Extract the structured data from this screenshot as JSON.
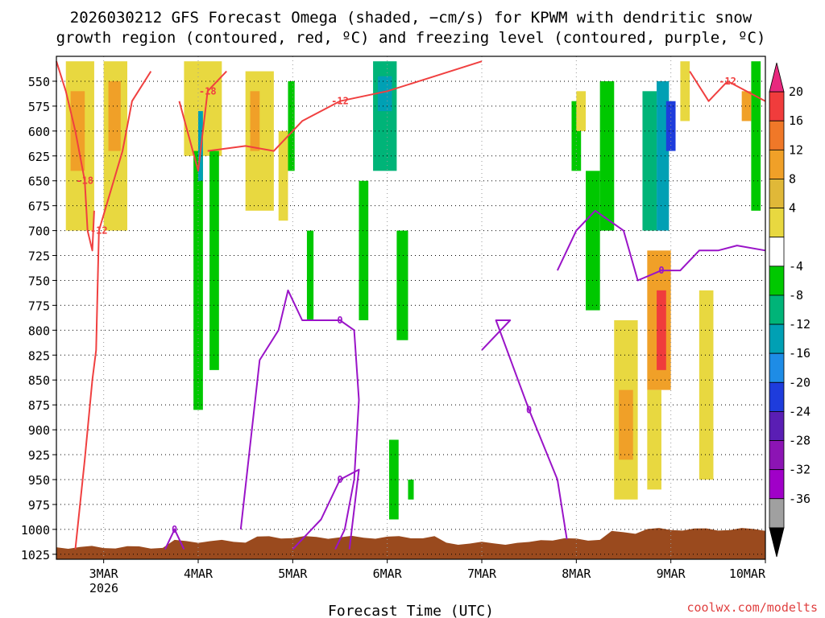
{
  "chart_data": {
    "type": "heatmap",
    "title_line1": "2026030212 GFS Forecast Omega (shaded, −cm/s) for KPWM with dendritic snow",
    "title_line2": "growth region (contoured, red, ºC) and freezing level (contoured, purple, ºC)",
    "xlabel": "Forecast Time (UTC)",
    "credit": "coolwx.com/modelts",
    "year_label": "2026",
    "x_ticks": [
      {
        "label": "3MAR",
        "t": 0.5
      },
      {
        "label": "4MAR",
        "t": 1.5
      },
      {
        "label": "5MAR",
        "t": 2.5
      },
      {
        "label": "6MAR",
        "t": 3.5
      },
      {
        "label": "7MAR",
        "t": 4.5
      },
      {
        "label": "8MAR",
        "t": 5.5
      },
      {
        "label": "9MAR",
        "t": 6.5
      },
      {
        "label": "10MAR",
        "t": 7.5
      }
    ],
    "x_range": [
      0,
      7.5
    ],
    "y_levels": [
      550,
      575,
      600,
      625,
      650,
      675,
      700,
      725,
      750,
      775,
      800,
      825,
      850,
      875,
      900,
      925,
      950,
      975,
      1000,
      1025
    ],
    "y_range": [
      525,
      1030
    ],
    "colorbar": {
      "labels": [
        "20",
        "16",
        "12",
        "8",
        "4",
        "-4",
        "-8",
        "-12",
        "-16",
        "-20",
        "-24",
        "-28",
        "-32",
        "-36"
      ],
      "colors": [
        "#e8287e",
        "#f03c3c",
        "#f07828",
        "#f0a028",
        "#e0b838",
        "#e8d840",
        "#ffffff",
        "#00c800",
        "#00b478",
        "#00a0b4",
        "#1e8ce6",
        "#1e3cdc",
        "#5a1eb4",
        "#8c14b4",
        "#a000c8",
        "#a0a0a0",
        "#000000"
      ]
    },
    "omega_cells": [
      {
        "t0": 0.1,
        "t1": 0.4,
        "p0": 530,
        "p1": 700,
        "v": 5
      },
      {
        "t0": 0.15,
        "t1": 0.3,
        "p0": 560,
        "p1": 640,
        "v": 10
      },
      {
        "t0": 0.5,
        "t1": 0.75,
        "p0": 530,
        "p1": 700,
        "v": 5
      },
      {
        "t0": 0.55,
        "t1": 0.68,
        "p0": 550,
        "p1": 620,
        "v": 10
      },
      {
        "t0": 1.35,
        "t1": 1.75,
        "p0": 530,
        "p1": 625,
        "v": 6
      },
      {
        "t0": 1.45,
        "t1": 1.55,
        "p0": 620,
        "p1": 880,
        "v": -7
      },
      {
        "t0": 1.62,
        "t1": 1.72,
        "p0": 620,
        "p1": 840,
        "v": -7
      },
      {
        "t0": 1.5,
        "t1": 1.55,
        "p0": 580,
        "p1": 650,
        "v": -14
      },
      {
        "t0": 2.0,
        "t1": 2.3,
        "p0": 540,
        "p1": 680,
        "v": 6
      },
      {
        "t0": 2.05,
        "t1": 2.15,
        "p0": 560,
        "p1": 620,
        "v": 10
      },
      {
        "t0": 2.35,
        "t1": 2.45,
        "p0": 600,
        "p1": 690,
        "v": 5
      },
      {
        "t0": 2.45,
        "t1": 2.52,
        "p0": 550,
        "p1": 640,
        "v": -7
      },
      {
        "t0": 2.65,
        "t1": 2.72,
        "p0": 700,
        "p1": 790,
        "v": -7
      },
      {
        "t0": 3.35,
        "t1": 3.6,
        "p0": 530,
        "p1": 640,
        "v": -10
      },
      {
        "t0": 3.4,
        "t1": 3.55,
        "p0": 545,
        "p1": 580,
        "v": -14
      },
      {
        "t0": 3.2,
        "t1": 3.3,
        "p0": 650,
        "p1": 790,
        "v": -7
      },
      {
        "t0": 3.52,
        "t1": 3.62,
        "p0": 910,
        "p1": 990,
        "v": -7
      },
      {
        "t0": 3.6,
        "t1": 3.72,
        "p0": 700,
        "p1": 810,
        "v": -7
      },
      {
        "t0": 3.72,
        "t1": 3.78,
        "p0": 950,
        "p1": 970,
        "v": -7
      },
      {
        "t0": 5.45,
        "t1": 5.55,
        "p0": 570,
        "p1": 640,
        "v": -7
      },
      {
        "t0": 5.5,
        "t1": 5.6,
        "p0": 560,
        "p1": 600,
        "v": 5
      },
      {
        "t0": 5.6,
        "t1": 5.75,
        "p0": 640,
        "p1": 780,
        "v": -7
      },
      {
        "t0": 5.75,
        "t1": 5.9,
        "p0": 550,
        "p1": 700,
        "v": -7
      },
      {
        "t0": 6.2,
        "t1": 6.35,
        "p0": 560,
        "p1": 700,
        "v": -10
      },
      {
        "t0": 6.35,
        "t1": 6.48,
        "p0": 550,
        "p1": 700,
        "v": -14
      },
      {
        "t0": 6.45,
        "t1": 6.55,
        "p0": 570,
        "p1": 620,
        "v": -21
      },
      {
        "t0": 6.6,
        "t1": 6.7,
        "p0": 530,
        "p1": 590,
        "v": 6
      },
      {
        "t0": 6.25,
        "t1": 6.5,
        "p0": 720,
        "p1": 860,
        "v": 8
      },
      {
        "t0": 6.35,
        "t1": 6.45,
        "p0": 760,
        "p1": 840,
        "v": 16
      },
      {
        "t0": 5.9,
        "t1": 6.15,
        "p0": 790,
        "p1": 970,
        "v": 5
      },
      {
        "t0": 5.95,
        "t1": 6.1,
        "p0": 860,
        "p1": 930,
        "v": 9
      },
      {
        "t0": 6.25,
        "t1": 6.4,
        "p0": 860,
        "p1": 960,
        "v": 5
      },
      {
        "t0": 6.8,
        "t1": 6.95,
        "p0": 760,
        "p1": 950,
        "v": 5
      },
      {
        "t0": 7.35,
        "t1": 7.45,
        "p0": 530,
        "p1": 680,
        "v": -7
      },
      {
        "t0": 7.25,
        "t1": 7.35,
        "p0": 560,
        "p1": 590,
        "v": 10
      }
    ],
    "dendritic_contours": [
      {
        "label": "-18",
        "points": [
          [
            0.0,
            530
          ],
          [
            0.1,
            560
          ],
          [
            0.2,
            600
          ],
          [
            0.3,
            650
          ],
          [
            0.33,
            700
          ],
          [
            0.38,
            720
          ],
          [
            0.4,
            680
          ]
        ]
      },
      {
        "label": "-12",
        "points": [
          [
            0.2,
            1020
          ],
          [
            0.3,
            930
          ],
          [
            0.38,
            850
          ],
          [
            0.42,
            820
          ],
          [
            0.45,
            700
          ],
          [
            0.7,
            620
          ],
          [
            0.8,
            570
          ],
          [
            1.0,
            540
          ]
        ]
      },
      {
        "label": "-18",
        "points": [
          [
            1.3,
            570
          ],
          [
            1.5,
            640
          ],
          [
            1.6,
            560
          ],
          [
            1.8,
            540
          ]
        ]
      },
      {
        "label": "-12",
        "points": [
          [
            1.6,
            620
          ],
          [
            2.0,
            615
          ],
          [
            2.3,
            620
          ],
          [
            2.6,
            590
          ],
          [
            3.0,
            570
          ],
          [
            3.5,
            560
          ],
          [
            4.0,
            545
          ],
          [
            4.5,
            530
          ]
        ]
      },
      {
        "label": "-12",
        "points": [
          [
            6.7,
            540
          ],
          [
            6.9,
            570
          ],
          [
            7.1,
            550
          ],
          [
            7.5,
            570
          ]
        ]
      }
    ],
    "freezing_contours": [
      {
        "label": "0",
        "points": [
          [
            1.15,
            1020
          ],
          [
            1.25,
            1000
          ],
          [
            1.35,
            1020
          ]
        ]
      },
      {
        "label": "0",
        "points": [
          [
            1.95,
            1000
          ],
          [
            2.15,
            830
          ],
          [
            2.35,
            800
          ],
          [
            2.45,
            760
          ],
          [
            2.6,
            790
          ],
          [
            2.8,
            790
          ],
          [
            3.0,
            790
          ],
          [
            3.15,
            800
          ],
          [
            3.2,
            870
          ],
          [
            3.15,
            950
          ],
          [
            3.05,
            1000
          ],
          [
            2.95,
            1020
          ]
        ]
      },
      {
        "label": "0",
        "points": [
          [
            2.5,
            1020
          ],
          [
            2.8,
            990
          ],
          [
            3.0,
            950
          ],
          [
            3.2,
            940
          ],
          [
            3.1,
            1020
          ]
        ]
      },
      {
        "label": "0",
        "points": [
          [
            4.5,
            820
          ],
          [
            4.8,
            790
          ],
          [
            4.65,
            790
          ],
          [
            5.0,
            880
          ],
          [
            5.3,
            950
          ],
          [
            5.4,
            1010
          ]
        ]
      },
      {
        "label": "0",
        "points": [
          [
            5.3,
            740
          ],
          [
            5.5,
            700
          ],
          [
            5.7,
            680
          ],
          [
            6.0,
            700
          ],
          [
            6.15,
            750
          ],
          [
            6.4,
            740
          ],
          [
            6.6,
            740
          ],
          [
            6.8,
            720
          ],
          [
            7.0,
            720
          ],
          [
            7.2,
            715
          ],
          [
            7.5,
            720
          ]
        ]
      }
    ]
  }
}
